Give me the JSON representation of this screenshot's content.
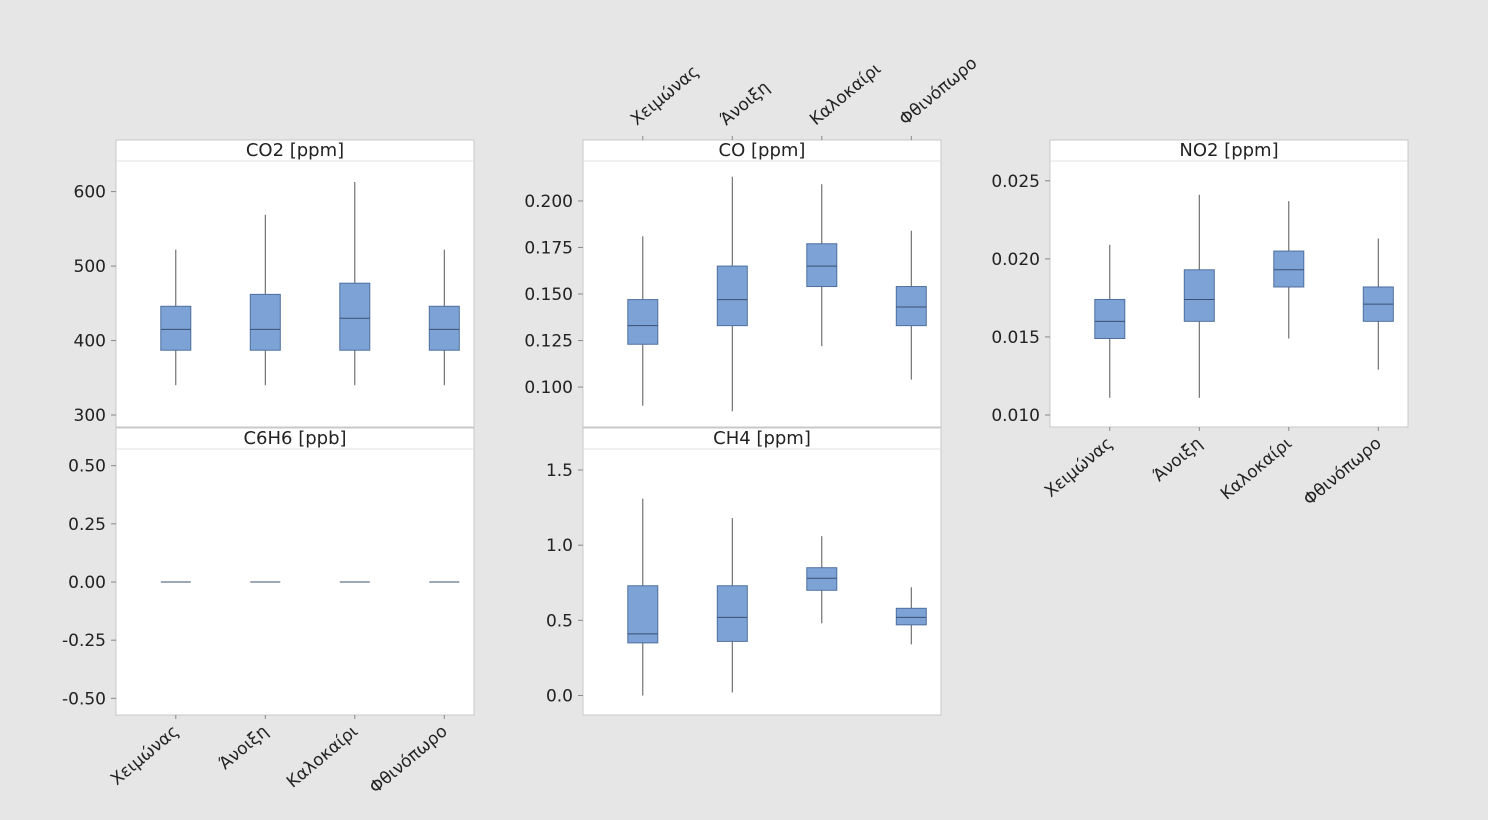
{
  "chart_data": {
    "type": "box",
    "categories": [
      "Χειμώνας",
      "Άνοιξη",
      "Καλοκαίρι",
      "Φθινόπωρο"
    ],
    "colors": {
      "box_fill": "#7da3d6",
      "box_stroke": "#4f6f9e",
      "whisker": "#555555",
      "panel_bg": "#ffffff",
      "page_bg": "#e6e6e6",
      "axis_text": "#222222"
    },
    "panels": [
      {
        "title": "CO2 [ppm]",
        "ylim": [
          300,
          625
        ],
        "yticks": [
          300,
          400,
          500,
          600
        ],
        "ytick_labels": [
          "300",
          "400",
          "500",
          "600"
        ],
        "boxes": [
          {
            "min": 340,
            "q1": 387,
            "median": 415,
            "q3": 446,
            "max": 522
          },
          {
            "min": 340,
            "q1": 387,
            "median": 415,
            "q3": 462,
            "max": 569
          },
          {
            "min": 340,
            "q1": 387,
            "median": 430,
            "q3": 477,
            "max": 613
          },
          {
            "min": 340,
            "q1": 387,
            "median": 415,
            "q3": 446,
            "max": 522
          }
        ]
      },
      {
        "title": "CO [ppm]",
        "ylim": [
          0.085,
          0.215
        ],
        "yticks": [
          0.1,
          0.125,
          0.15,
          0.175,
          0.2
        ],
        "ytick_labels": [
          "0.100",
          "0.125",
          "0.150",
          "0.175",
          "0.200"
        ],
        "boxes": [
          {
            "min": 0.09,
            "q1": 0.123,
            "median": 0.133,
            "q3": 0.147,
            "max": 0.181
          },
          {
            "min": 0.087,
            "q1": 0.133,
            "median": 0.147,
            "q3": 0.165,
            "max": 0.213
          },
          {
            "min": 0.122,
            "q1": 0.154,
            "median": 0.165,
            "q3": 0.177,
            "max": 0.209
          },
          {
            "min": 0.104,
            "q1": 0.133,
            "median": 0.143,
            "q3": 0.154,
            "max": 0.184
          }
        ]
      },
      {
        "title": "NO2 [ppm]",
        "ylim": [
          0.01,
          0.0255
        ],
        "yticks": [
          0.01,
          0.015,
          0.02,
          0.025
        ],
        "ytick_labels": [
          "0.010",
          "0.015",
          "0.020",
          "0.025"
        ],
        "boxes": [
          {
            "min": 0.0111,
            "q1": 0.0149,
            "median": 0.016,
            "q3": 0.0174,
            "max": 0.0209
          },
          {
            "min": 0.0111,
            "q1": 0.016,
            "median": 0.0174,
            "q3": 0.0193,
            "max": 0.0241
          },
          {
            "min": 0.0149,
            "q1": 0.0182,
            "median": 0.0193,
            "q3": 0.0205,
            "max": 0.0237
          },
          {
            "min": 0.0129,
            "q1": 0.016,
            "median": 0.0171,
            "q3": 0.0182,
            "max": 0.0213
          }
        ]
      },
      {
        "title": "C6H6 [ppb]",
        "ylim": [
          -0.52,
          0.52
        ],
        "yticks": [
          -0.5,
          -0.25,
          0.0,
          0.25,
          0.5
        ],
        "ytick_labels": [
          "-0.50",
          "-0.25",
          "0.00",
          "0.25",
          "0.50"
        ],
        "boxes": [
          {
            "min": 0,
            "q1": 0,
            "median": 0,
            "q3": 0,
            "max": 0
          },
          {
            "min": 0,
            "q1": 0,
            "median": 0,
            "q3": 0,
            "max": 0
          },
          {
            "min": 0,
            "q1": 0,
            "median": 0,
            "q3": 0,
            "max": 0
          },
          {
            "min": 0,
            "q1": 0,
            "median": 0,
            "q3": 0,
            "max": 0
          }
        ]
      },
      {
        "title": "CH4 [ppm]",
        "ylim": [
          -0.05,
          1.56
        ],
        "yticks": [
          0.0,
          0.5,
          1.0,
          1.5
        ],
        "ytick_labels": [
          "0.0",
          "0.5",
          "1.0",
          "1.5"
        ],
        "boxes": [
          {
            "min": 0.0,
            "q1": 0.35,
            "median": 0.41,
            "q3": 0.73,
            "max": 1.31
          },
          {
            "min": 0.02,
            "q1": 0.36,
            "median": 0.52,
            "q3": 0.73,
            "max": 1.18
          },
          {
            "min": 0.48,
            "q1": 0.7,
            "median": 0.78,
            "q3": 0.85,
            "max": 1.06
          },
          {
            "min": 0.34,
            "q1": 0.47,
            "median": 0.52,
            "q3": 0.58,
            "max": 0.72
          }
        ]
      }
    ]
  }
}
